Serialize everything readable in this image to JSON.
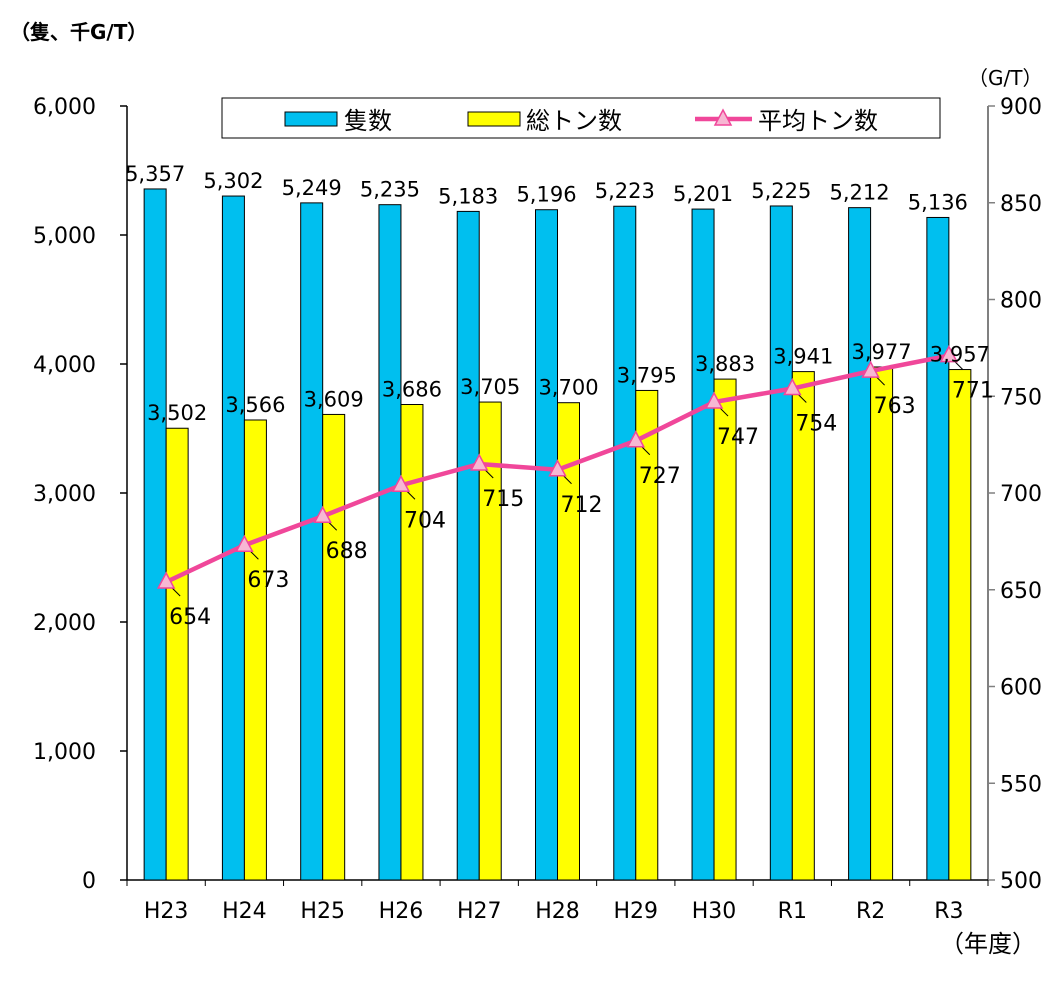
{
  "chart_data": {
    "type": "bar",
    "title": "",
    "unit_left": "（隻、千G/T）",
    "unit_right": "（G/T）",
    "xunit": "（年度）",
    "categories": [
      "H23",
      "H24",
      "H25",
      "H26",
      "H27",
      "H28",
      "H29",
      "H30",
      "R1",
      "R2",
      "R3"
    ],
    "ylim": [
      0,
      6000
    ],
    "yticks": [
      0,
      1000,
      2000,
      3000,
      4000,
      5000,
      6000
    ],
    "ytick_labels": [
      "0",
      "1,000",
      "2,000",
      "3,000",
      "4,000",
      "5,000",
      "6,000"
    ],
    "y2lim": [
      500,
      900
    ],
    "y2ticks": [
      500,
      550,
      600,
      650,
      700,
      750,
      800,
      850,
      900
    ],
    "y2tick_labels": [
      "500",
      "550",
      "600",
      "650",
      "700",
      "750",
      "800",
      "850",
      "900"
    ],
    "series": [
      {
        "name": "隻数",
        "type": "bar",
        "axis": "left",
        "color": "#00BFEF",
        "values": [
          5357,
          5302,
          5249,
          5235,
          5183,
          5196,
          5223,
          5201,
          5225,
          5212,
          5136
        ],
        "labels": [
          "5,357",
          "5,302",
          "5,249",
          "5,235",
          "5,183",
          "5,196",
          "5,223",
          "5,201",
          "5,225",
          "5,212",
          "5,136"
        ]
      },
      {
        "name": "総トン数",
        "type": "bar",
        "axis": "left",
        "color": "#FFFF00",
        "values": [
          3502,
          3566,
          3609,
          3686,
          3705,
          3700,
          3795,
          3883,
          3941,
          3977,
          3957
        ],
        "labels": [
          "3,502",
          "3,566",
          "3,609",
          "3,686",
          "3,705",
          "3,700",
          "3,795",
          "3,883",
          "3,941",
          "3,977",
          "3,957"
        ]
      },
      {
        "name": "平均トン数",
        "type": "line",
        "axis": "right",
        "color": "#F0479A",
        "values": [
          654,
          673,
          688,
          704,
          715,
          712,
          727,
          747,
          754,
          763,
          771
        ],
        "labels": [
          "654",
          "673",
          "688",
          "704",
          "715",
          "712",
          "727",
          "747",
          "754",
          "763",
          "771"
        ]
      }
    ],
    "legend": "top",
    "grid": false
  }
}
